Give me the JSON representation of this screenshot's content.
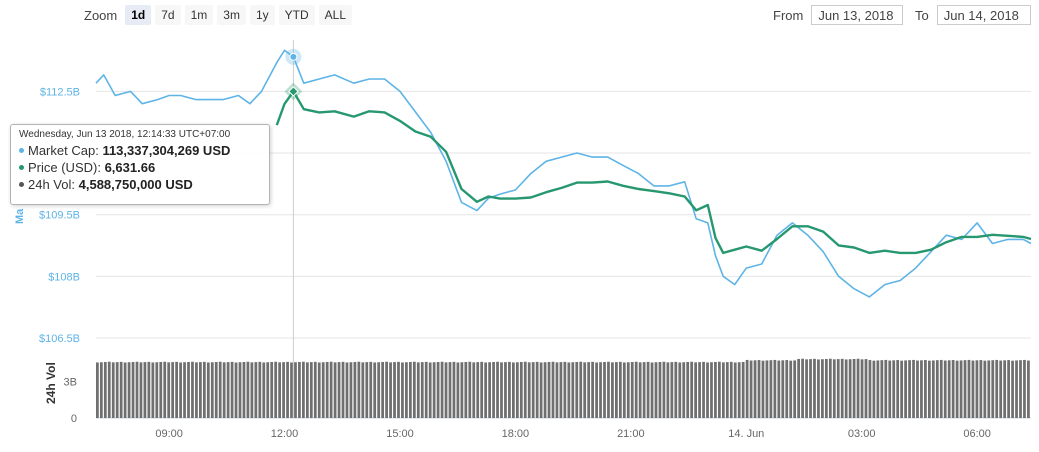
{
  "zoom": {
    "label": "Zoom",
    "buttons": [
      "1d",
      "7d",
      "1m",
      "3m",
      "1y",
      "YTD",
      "ALL"
    ],
    "active": "1d"
  },
  "range": {
    "from_label": "From",
    "from_value": "Jun 13, 2018",
    "to_label": "To",
    "to_value": "Jun 14, 2018"
  },
  "tooltip": {
    "date": "Wednesday, Jun 13 2018, 12:14:33 UTC+07:00",
    "market_cap_label": "Market Cap:",
    "market_cap_value": "113,337,304,269 USD",
    "price_label": "Price (USD):",
    "price_value": "6,631.66",
    "volume_label": "24h Vol:",
    "volume_value": "4,588,750,000 USD"
  },
  "colors": {
    "market_cap": "#5eb4e6",
    "price": "#26976e",
    "volume": "#555555"
  },
  "chart_data": {
    "type": "line",
    "x_tick_labels": [
      "09:00",
      "12:00",
      "15:00",
      "18:00",
      "21:00",
      "14. Jun",
      "03:00",
      "06:00"
    ],
    "x_range_hours": [
      7.1,
      31.4
    ],
    "market_cap_axis": {
      "label": "Ma",
      "ticks": [
        "$106.5B",
        "$108B",
        "$109.5B",
        "$112.5B"
      ],
      "ylim_billion": [
        106.5,
        113.75
      ]
    },
    "volume_axis": {
      "label": "24h Vol",
      "ticks": [
        "0",
        "3B"
      ],
      "ylim_billion": [
        0,
        6.2
      ]
    },
    "series": [
      {
        "name": "Market Cap",
        "x_hours": [
          7.1,
          7.3,
          7.6,
          8.0,
          8.3,
          8.7,
          9.0,
          9.3,
          9.7,
          10.0,
          10.4,
          10.8,
          11.1,
          11.4,
          11.8,
          12.0,
          12.23,
          12.5,
          12.9,
          13.3,
          13.8,
          14.2,
          14.6,
          15.0,
          15.4,
          15.8,
          16.2,
          16.6,
          17.0,
          17.3,
          17.6,
          18.0,
          18.4,
          18.8,
          19.2,
          19.6,
          20.0,
          20.4,
          20.8,
          21.2,
          21.6,
          22.0,
          22.4,
          22.7,
          23.0,
          23.2,
          23.4,
          23.7,
          24.0,
          24.4,
          24.8,
          25.2,
          25.6,
          26.0,
          26.4,
          26.8,
          27.2,
          27.6,
          28.0,
          28.4,
          28.8,
          29.2,
          29.6,
          30.0,
          30.4,
          30.8,
          31.2,
          31.4
        ],
        "values": [
          112.7,
          112.9,
          112.4,
          112.5,
          112.2,
          112.3,
          112.4,
          112.4,
          112.3,
          112.3,
          112.3,
          112.4,
          112.2,
          112.5,
          113.2,
          113.5,
          113.34,
          112.7,
          112.8,
          112.9,
          112.7,
          112.8,
          112.8,
          112.5,
          112.0,
          111.5,
          110.8,
          109.8,
          109.6,
          109.9,
          110.0,
          110.1,
          110.5,
          110.8,
          110.9,
          111.0,
          110.9,
          110.9,
          110.7,
          110.5,
          110.2,
          110.2,
          110.3,
          109.4,
          109.3,
          108.5,
          108.0,
          107.8,
          108.2,
          108.3,
          109.0,
          109.3,
          109.0,
          108.6,
          108.0,
          107.7,
          107.5,
          107.8,
          107.9,
          108.2,
          108.6,
          109.0,
          108.9,
          109.3,
          108.8,
          108.9,
          108.9,
          108.8
        ],
        "color": "#5eb4e6"
      },
      {
        "name": "Price (USD)",
        "x_hours": [
          11.8,
          12.0,
          12.23,
          12.5,
          12.9,
          13.3,
          13.8,
          14.2,
          14.6,
          15.0,
          15.4,
          15.8,
          16.2,
          16.6,
          17.0,
          17.3,
          17.6,
          18.0,
          18.4,
          18.8,
          19.2,
          19.6,
          20.0,
          20.4,
          20.8,
          21.2,
          21.6,
          22.0,
          22.4,
          22.7,
          23.0,
          23.2,
          23.4,
          23.7,
          24.0,
          24.4,
          24.8,
          25.2,
          25.6,
          26.0,
          26.4,
          26.8,
          27.2,
          27.6,
          28.0,
          28.4,
          28.8,
          29.2,
          29.6,
          30.0,
          30.4,
          30.8,
          31.2,
          31.4
        ],
        "values": [
          6600,
          6620,
          6631.66,
          6615,
          6612,
          6613,
          6608,
          6613,
          6612,
          6604,
          6594,
          6589,
          6575,
          6540,
          6528,
          6533,
          6531,
          6531,
          6532,
          6537,
          6541,
          6546,
          6546,
          6547,
          6543,
          6540,
          6538,
          6536,
          6533,
          6520,
          6525,
          6494,
          6480,
          6483,
          6486,
          6482,
          6493,
          6505,
          6505,
          6500,
          6487,
          6485,
          6480,
          6482,
          6480,
          6480,
          6483,
          6490,
          6495,
          6495,
          6497,
          6496,
          6495,
          6493
        ],
        "color": "#26976e"
      }
    ]
  }
}
